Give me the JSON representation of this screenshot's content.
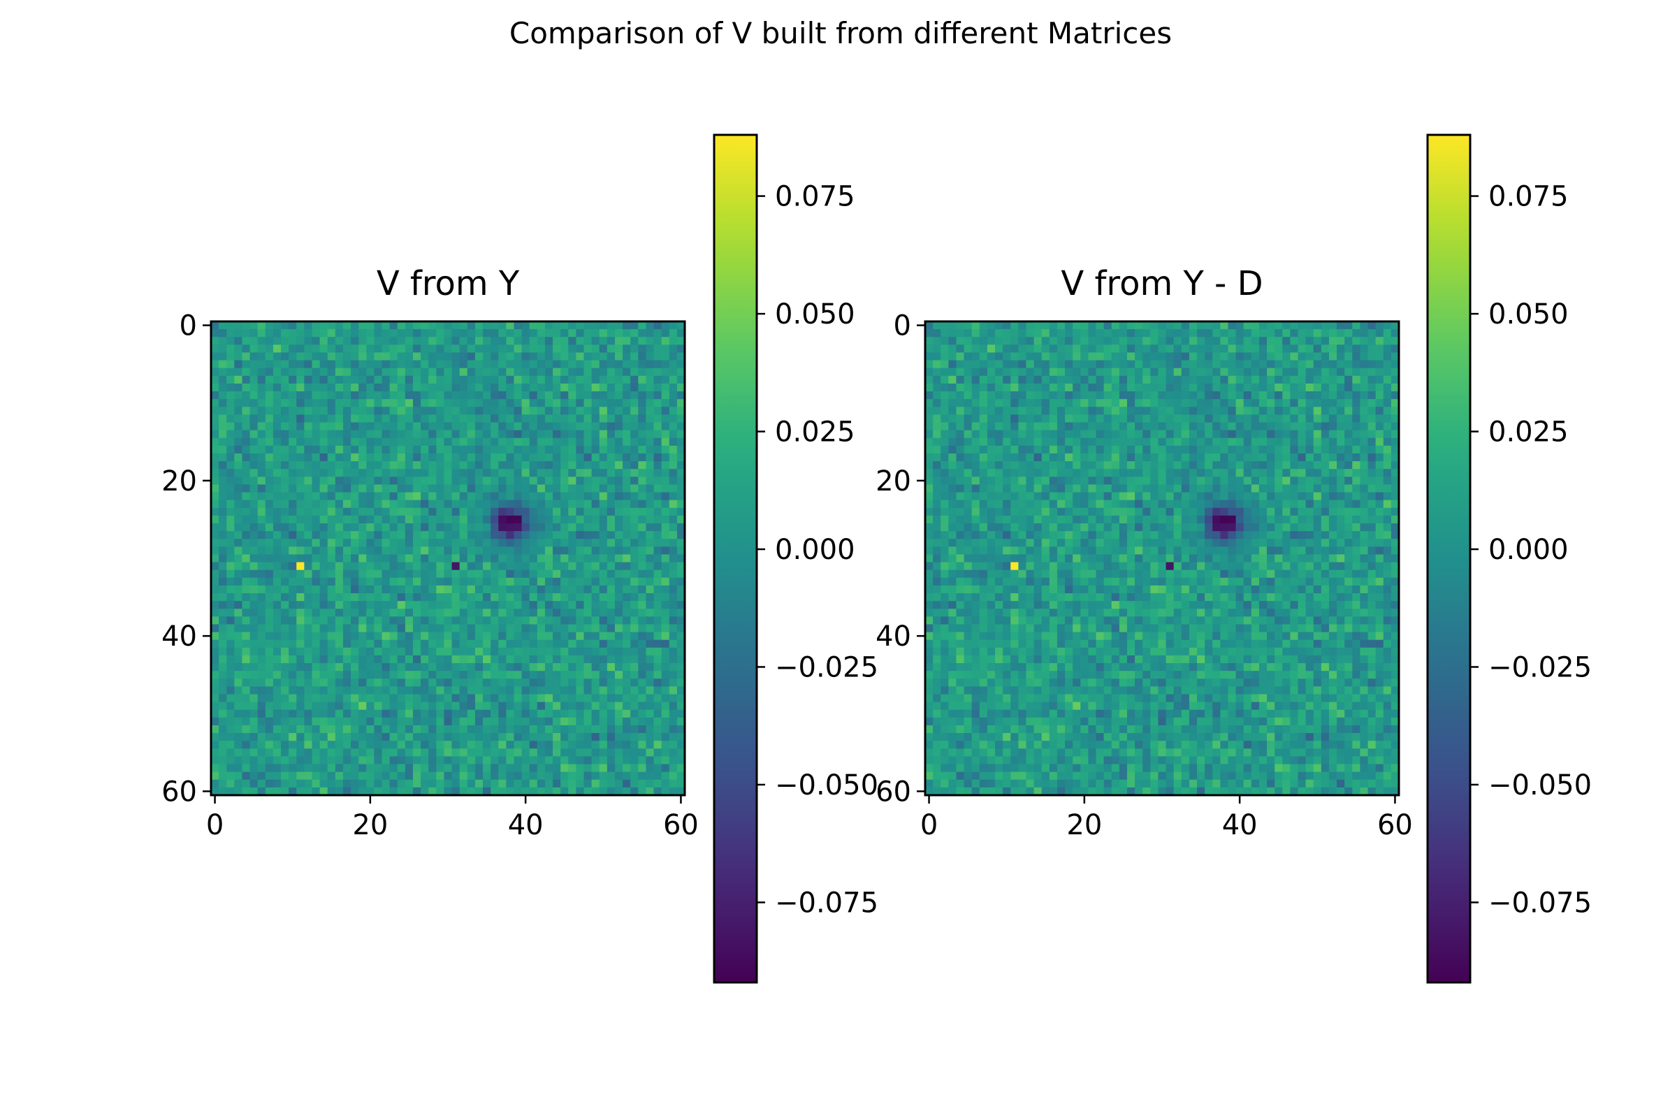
{
  "figure": {
    "suptitle": "Comparison of V built from different Matrices"
  },
  "chart_data": [
    {
      "type": "heatmap",
      "title": "V from Y",
      "grid_size": 61,
      "xticks": [
        0,
        20,
        40,
        60
      ],
      "yticks": [
        0,
        20,
        40,
        60
      ],
      "xlim": [
        0,
        60
      ],
      "ylim": [
        60,
        0
      ],
      "colormap": "viridis",
      "value_range": [
        -0.092,
        0.088
      ],
      "colorbar_ticks": [
        0.075,
        0.05,
        0.025,
        0.0,
        -0.025,
        -0.05,
        -0.075
      ],
      "colorbar_tick_labels": [
        "0.075",
        "0.050",
        "0.025",
        "0.000",
        "−0.025",
        "−0.050",
        "−0.075"
      ],
      "features": [
        {
          "kind": "dark_blob",
          "col": 38,
          "row": 25.5,
          "value": -0.09
        },
        {
          "kind": "bright_pixel",
          "col": 11,
          "row": 31,
          "value": 0.088
        },
        {
          "kind": "dark_pixel",
          "col": 31,
          "row": 31,
          "value": -0.085
        },
        {
          "kind": "light_region",
          "col": 30,
          "row": 37,
          "value": 0.035
        }
      ]
    },
    {
      "type": "heatmap",
      "title": "V from Y - D",
      "grid_size": 61,
      "xticks": [
        0,
        20,
        40,
        60
      ],
      "yticks": [
        0,
        20,
        40,
        60
      ],
      "xlim": [
        0,
        60
      ],
      "ylim": [
        60,
        0
      ],
      "colormap": "viridis",
      "value_range": [
        -0.092,
        0.088
      ],
      "colorbar_ticks": [
        0.075,
        0.05,
        0.025,
        0.0,
        -0.025,
        -0.05,
        -0.075
      ],
      "colorbar_tick_labels": [
        "0.075",
        "0.050",
        "0.025",
        "0.000",
        "−0.025",
        "−0.050",
        "−0.075"
      ],
      "features": [
        {
          "kind": "dark_blob",
          "col": 38,
          "row": 25.5,
          "value": -0.09
        },
        {
          "kind": "bright_pixel",
          "col": 11,
          "row": 31,
          "value": 0.088
        },
        {
          "kind": "dark_pixel",
          "col": 31,
          "row": 31,
          "value": -0.085
        },
        {
          "kind": "light_region",
          "col": 30,
          "row": 37,
          "value": 0.035
        }
      ]
    }
  ]
}
